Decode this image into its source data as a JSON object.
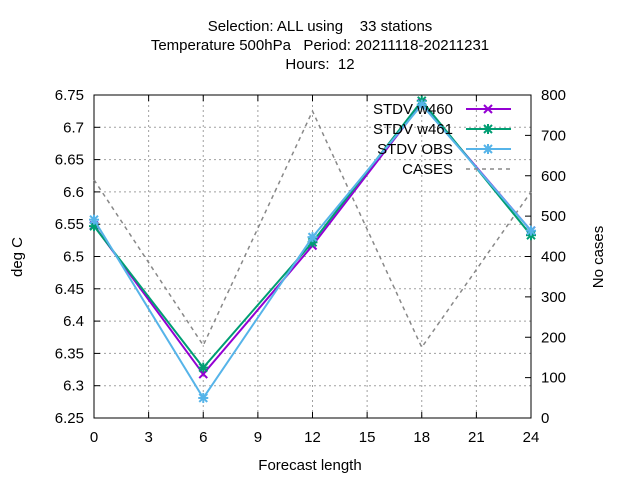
{
  "chart_data": {
    "type": "line",
    "title_lines": [
      "Selection: ALL using    33 stations",
      "Temperature 500hPa   Period: 20211118-20211231",
      "Hours:  12"
    ],
    "xlabel": "Forecast length",
    "ylabel": "deg C",
    "y2label": "No cases",
    "x": [
      0,
      6,
      12,
      18,
      24
    ],
    "xticks": [
      0,
      3,
      6,
      9,
      12,
      15,
      18,
      21,
      24
    ],
    "xlim": [
      0,
      24
    ],
    "ylim": [
      6.25,
      6.75
    ],
    "yticks": [
      "6.25",
      "6.3",
      "6.35",
      "6.4",
      "6.45",
      "6.5",
      "6.55",
      "6.6",
      "6.65",
      "6.7",
      "6.75"
    ],
    "y2lim": [
      0,
      800
    ],
    "y2ticks": [
      0,
      100,
      200,
      300,
      400,
      500,
      600,
      700,
      800
    ],
    "grid": true,
    "legend_position": "top-right",
    "series": [
      {
        "name": "STDV w460",
        "axis": "y",
        "color": "#9400d3",
        "dash": "none",
        "marker": "x",
        "values": [
          6.548,
          6.318,
          6.517,
          6.737,
          6.54
        ]
      },
      {
        "name": "STDV w461",
        "axis": "y",
        "color": "#009e73",
        "dash": "none",
        "marker": "star",
        "values": [
          6.547,
          6.328,
          6.522,
          6.741,
          6.533
        ]
      },
      {
        "name": "STDV OBS",
        "axis": "y",
        "color": "#56b4e9",
        "dash": "none",
        "marker": "star",
        "values": [
          6.557,
          6.281,
          6.53,
          6.735,
          6.54
        ]
      },
      {
        "name": "CASES",
        "axis": "y2",
        "color": "#888888",
        "dash": "4,4",
        "marker": "none",
        "values": [
          590,
          180,
          760,
          175,
          560
        ]
      }
    ]
  }
}
